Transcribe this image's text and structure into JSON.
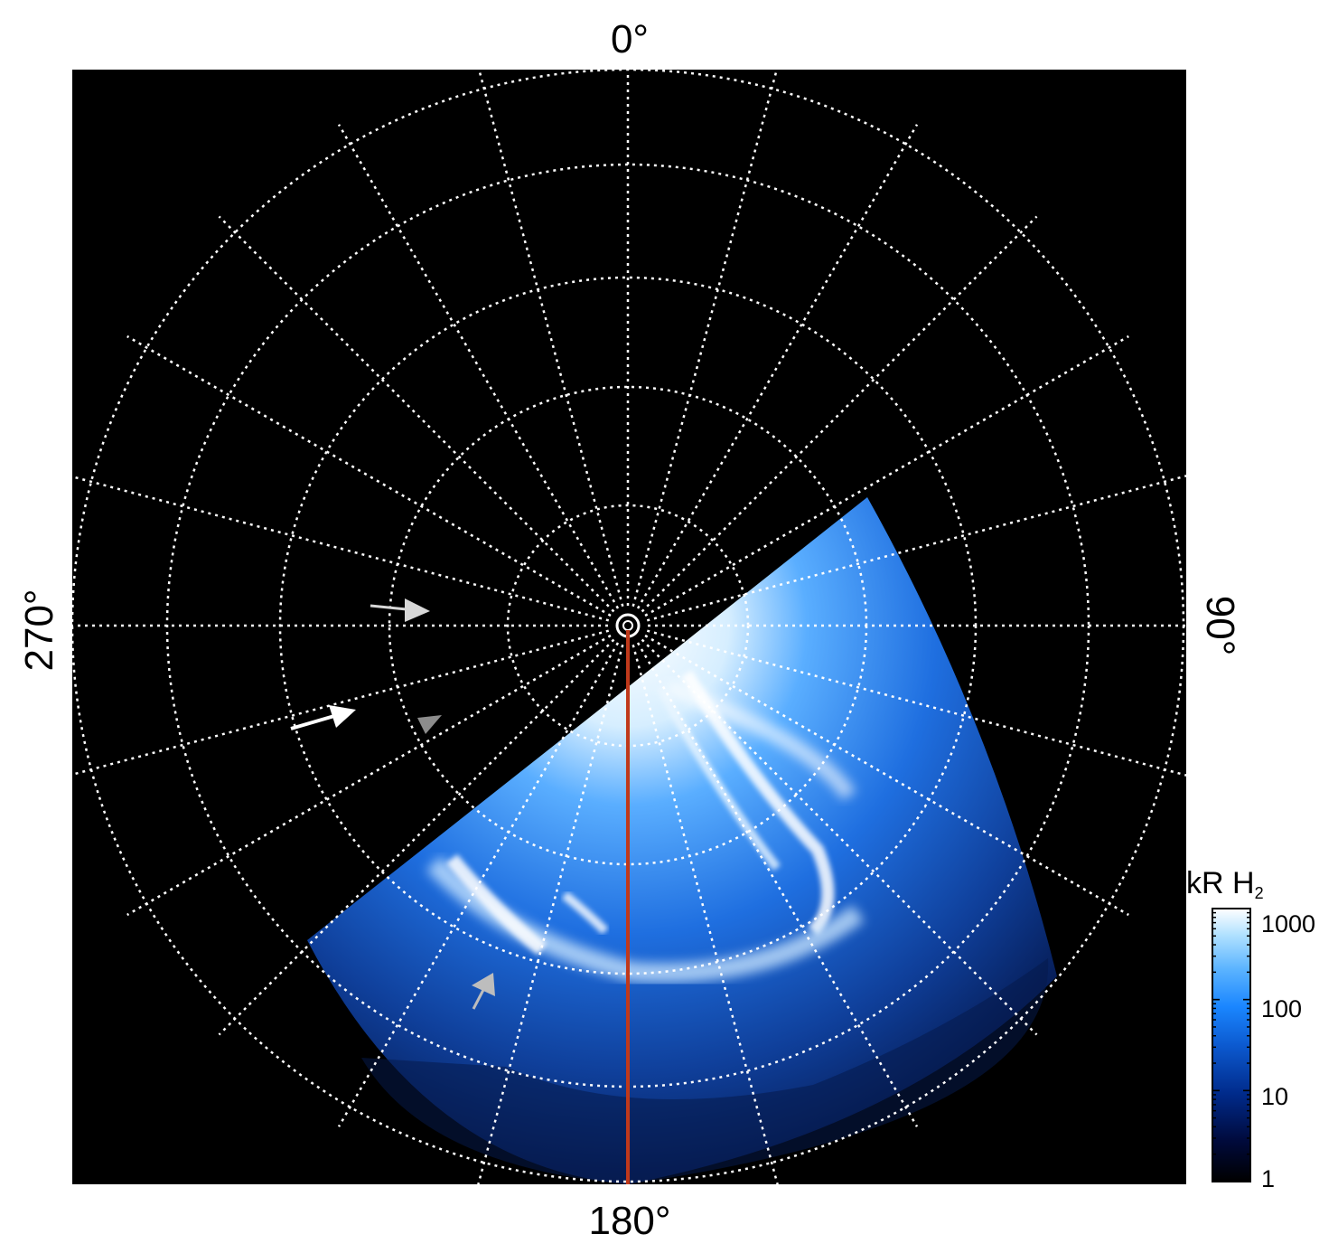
{
  "image": {
    "description_free": true,
    "background_color": "#000000",
    "grid_color": "#ffffff",
    "meridian_color": "#c0391b"
  },
  "labels": {
    "top": "0°",
    "bottom": "180°",
    "left": "270°",
    "right": "90°"
  },
  "colorbar": {
    "title": "kR H",
    "title_subscript": "2",
    "ticks": [
      "1",
      "10",
      "100",
      "1000"
    ],
    "colors": [
      "#000000",
      "#000a3c",
      "#002a8a",
      "#0c5ad0",
      "#1a86ff",
      "#5cb4ff",
      "#aee0ff",
      "#ffffff"
    ]
  },
  "arrows": [
    {
      "name": "arrow-gray-upper",
      "color": "#d8d8d8"
    },
    {
      "name": "arrow-white",
      "color": "#ffffff"
    },
    {
      "name": "arrowhead-gray-middle",
      "color": "#8c8c8c"
    },
    {
      "name": "arrow-gray-lower",
      "color": "#bdbdbd"
    }
  ]
}
